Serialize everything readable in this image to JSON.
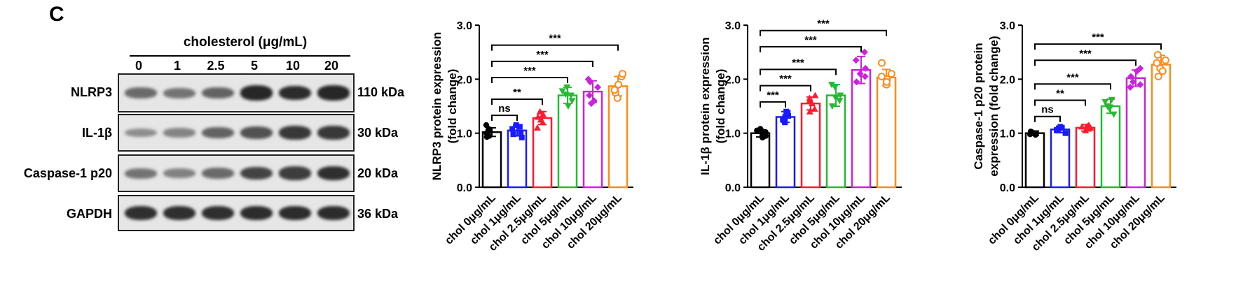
{
  "panel_letter": "C",
  "western_blot": {
    "treatment_title": "cholesterol (μg/mL)",
    "lanes": [
      "0",
      "1",
      "2.5",
      "5",
      "10",
      "20"
    ],
    "rows": [
      {
        "protein": "NLRP3",
        "size": "110 kDa",
        "intensity": [
          0.55,
          0.5,
          0.6,
          0.95,
          0.92,
          0.95
        ]
      },
      {
        "protein": "IL-1β",
        "size": "30 kDa",
        "intensity": [
          0.35,
          0.4,
          0.6,
          0.7,
          0.85,
          0.85
        ]
      },
      {
        "protein": "Caspase-1 p20",
        "size": "20 kDa",
        "intensity": [
          0.5,
          0.42,
          0.55,
          0.78,
          0.82,
          0.9
        ]
      },
      {
        "protein": "GAPDH",
        "size": "36 kDa",
        "intensity": [
          0.9,
          0.9,
          0.9,
          0.92,
          0.92,
          0.92
        ]
      }
    ]
  },
  "colors": {
    "chol 0μg/mL": "#000000",
    "chol 1μg/mL": "#1a1aff",
    "chol 2.5μg/mL": "#ff1a2e",
    "chol 5μg/mL": "#22bb33",
    "chol 10μg/mL": "#cc22dd",
    "chol 20μg/mL": "#ff8c1a"
  },
  "chart_data": [
    {
      "type": "bar",
      "title": "",
      "ylabel": [
        "NLRP3 protein expression",
        "(fold change)"
      ],
      "categories": [
        "chol 0μg/mL",
        "chol 1μg/mL",
        "chol 2.5μg/mL",
        "chol 5μg/mL",
        "chol 10μg/mL",
        "chol 20μg/mL"
      ],
      "values": [
        1.02,
        1.05,
        1.28,
        1.7,
        1.77,
        1.87
      ],
      "errors": [
        0.08,
        0.1,
        0.12,
        0.15,
        0.2,
        0.18
      ],
      "points": [
        [
          1.15,
          1.05,
          1.0,
          0.95,
          1.08,
          0.93
        ],
        [
          0.92,
          1.12,
          1.08,
          1.15,
          1.0,
          0.98
        ],
        [
          1.1,
          1.35,
          1.25,
          1.4,
          1.2,
          1.3
        ],
        [
          1.5,
          1.85,
          1.72,
          1.6,
          1.78,
          1.7
        ],
        [
          1.55,
          1.95,
          1.85,
          1.6,
          2.0,
          1.7
        ],
        [
          1.65,
          2.05,
          1.9,
          2.1,
          1.75,
          1.8
        ]
      ],
      "ylim": [
        0,
        3.0
      ],
      "yticks": [
        "0.0",
        "1.0",
        "2.0",
        "3.0"
      ],
      "comparisons": [
        {
          "label": "ns",
          "to": 1
        },
        {
          "label": "**",
          "to": 2
        },
        {
          "label": "***",
          "to": 3
        },
        {
          "label": "***",
          "to": 4
        },
        {
          "label": "***",
          "to": 5
        }
      ]
    },
    {
      "type": "bar",
      "title": "",
      "ylabel": [
        "IL-1β protein expression",
        "(fold change)"
      ],
      "categories": [
        "chol 0μg/mL",
        "chol 1μg/mL",
        "chol 2.5μg/mL",
        "chol 5μg/mL",
        "chol 10μg/mL",
        "chol 20μg/mL"
      ],
      "values": [
        1.0,
        1.3,
        1.55,
        1.7,
        2.17,
        2.03
      ],
      "errors": [
        0.07,
        0.1,
        0.12,
        0.2,
        0.25,
        0.15
      ],
      "points": [
        [
          1.08,
          0.92,
          1.0,
          1.05,
          0.95,
          1.02
        ],
        [
          1.2,
          1.38,
          1.3,
          1.25,
          1.4,
          1.32
        ],
        [
          1.4,
          1.65,
          1.55,
          1.7,
          1.45,
          1.6
        ],
        [
          1.5,
          1.9,
          1.7,
          1.6,
          1.85,
          1.65
        ],
        [
          1.95,
          2.5,
          2.2,
          2.05,
          2.35,
          2.1
        ],
        [
          1.9,
          2.3,
          2.0,
          2.1,
          1.95,
          2.05
        ]
      ],
      "ylim": [
        0,
        3.0
      ],
      "yticks": [
        "0.0",
        "1.0",
        "2.0",
        "3.0"
      ],
      "comparisons": [
        {
          "label": "***",
          "to": 1
        },
        {
          "label": "***",
          "to": 2
        },
        {
          "label": "***",
          "to": 3
        },
        {
          "label": "***",
          "to": 4
        },
        {
          "label": "***",
          "to": 5
        }
      ]
    },
    {
      "type": "bar",
      "title": "",
      "ylabel": [
        "Caspase-1 p20 protein",
        "expression (fold change)"
      ],
      "categories": [
        "chol 0μg/mL",
        "chol 1μg/mL",
        "chol 2.5μg/mL",
        "chol 5μg/mL",
        "chol 10μg/mL",
        "chol 20μg/mL"
      ],
      "values": [
        1.0,
        1.07,
        1.1,
        1.5,
        2.02,
        2.27
      ],
      "errors": [
        0.04,
        0.06,
        0.06,
        0.13,
        0.15,
        0.17
      ],
      "points": [
        [
          1.03,
          0.97,
          1.0,
          1.02,
          0.98,
          1.01
        ],
        [
          1.0,
          1.12,
          1.08,
          1.05,
          1.1,
          1.06
        ],
        [
          1.05,
          1.15,
          1.1,
          1.12,
          1.08,
          1.13
        ],
        [
          1.35,
          1.62,
          1.5,
          1.45,
          1.58,
          1.48
        ],
        [
          1.85,
          2.2,
          2.05,
          1.95,
          2.15,
          1.9
        ],
        [
          2.05,
          2.45,
          2.3,
          2.2,
          2.35,
          2.15
        ]
      ],
      "ylim": [
        0,
        3.0
      ],
      "yticks": [
        "0.0",
        "1.0",
        "2.0",
        "3.0"
      ],
      "comparisons": [
        {
          "label": "ns",
          "to": 1
        },
        {
          "label": "**",
          "to": 2
        },
        {
          "label": "***",
          "to": 3
        },
        {
          "label": "***",
          "to": 4
        },
        {
          "label": "***",
          "to": 5
        }
      ]
    }
  ]
}
